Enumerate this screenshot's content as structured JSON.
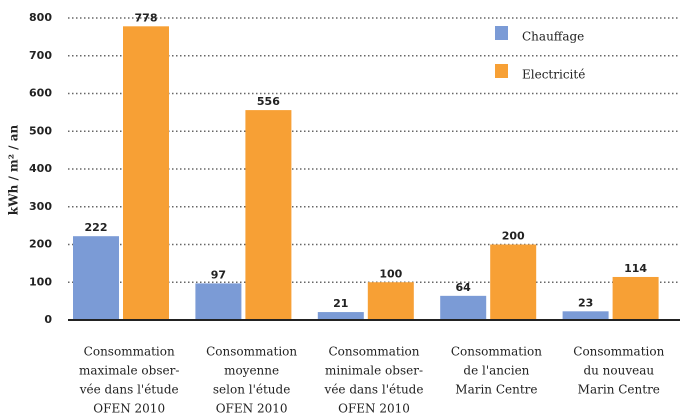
{
  "chart_data": {
    "type": "bar",
    "y_label": "kWh / m² / an",
    "categories": [
      [
        "Consommation",
        "maximale obser-",
        "vée dans l'étude",
        "OFEN 2010"
      ],
      [
        "Consommation",
        "moyenne",
        "selon l'étude",
        "OFEN 2010"
      ],
      [
        "Consommation",
        "minimale obser-",
        "vée dans l'étude",
        "OFEN 2010"
      ],
      [
        "Consommation",
        "de l'ancien",
        "Marin Centre"
      ],
      [
        "Consommation",
        "du nouveau",
        "Marin Centre"
      ]
    ],
    "series": [
      {
        "name": "Chauffage",
        "color": "#7b9bd6",
        "values": [
          222,
          97,
          21,
          64,
          23
        ]
      },
      {
        "name": "Electricité",
        "color": "#f7a035",
        "values": [
          778,
          556,
          100,
          200,
          114
        ]
      }
    ],
    "ylim": [
      0,
      800
    ],
    "yticks": [
      0,
      100,
      200,
      300,
      400,
      500,
      600,
      700,
      800
    ],
    "grid": true,
    "legend": "upper right"
  }
}
